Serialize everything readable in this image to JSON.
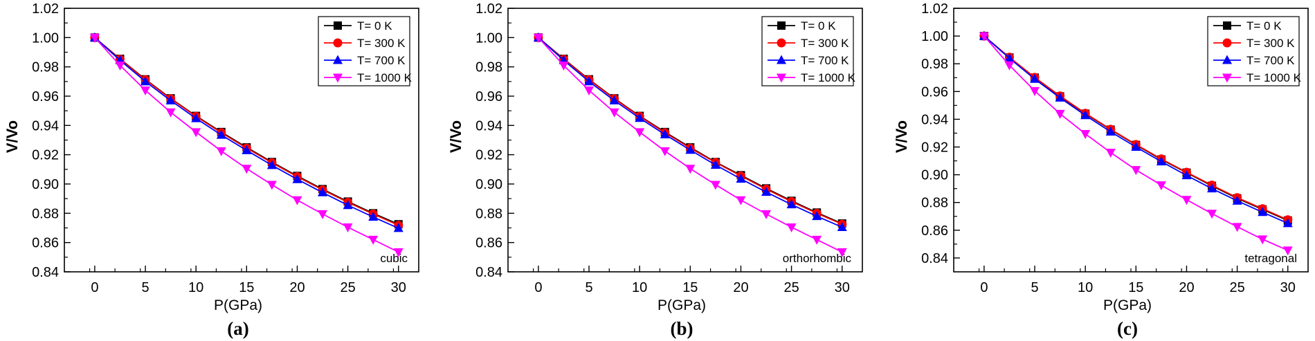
{
  "chart_data": [
    {
      "type": "line",
      "panel_label": "(a)",
      "annotation": "cubic",
      "xlabel": "P(GPa)",
      "ylabel": "V/Vo",
      "xlim": [
        -3,
        32
      ],
      "ylim": [
        0.84,
        1.02
      ],
      "x_ticks": [
        "0",
        "5",
        "10",
        "15",
        "20",
        "25",
        "30"
      ],
      "y_ticks": [
        "0.84",
        "0.86",
        "0.88",
        "0.90",
        "0.92",
        "0.94",
        "0.96",
        "0.98",
        "1.00",
        "1.02"
      ],
      "legend_position": "top-right",
      "x": [
        0,
        2.5,
        5,
        7.5,
        10,
        12.5,
        15,
        17.5,
        20,
        22.5,
        25,
        27.5,
        30
      ],
      "series": [
        {
          "name": "T= 0 K",
          "color": "#000000",
          "marker": "square",
          "values": [
            1.0,
            0.9855,
            0.9715,
            0.9585,
            0.9465,
            0.9355,
            0.925,
            0.915,
            0.9055,
            0.8965,
            0.888,
            0.88,
            0.8725
          ]
        },
        {
          "name": "T= 300 K",
          "color": "#ff0000",
          "marker": "circle",
          "values": [
            1.0,
            0.9852,
            0.9712,
            0.9582,
            0.9462,
            0.935,
            0.9245,
            0.9145,
            0.905,
            0.896,
            0.8875,
            0.8795,
            0.8718
          ]
        },
        {
          "name": "T= 700 K",
          "color": "#0000ff",
          "marker": "triangle-up",
          "values": [
            1.0,
            0.9845,
            0.97,
            0.957,
            0.9448,
            0.9335,
            0.923,
            0.9128,
            0.9032,
            0.8942,
            0.8855,
            0.8775,
            0.8698
          ]
        },
        {
          "name": "T= 1000 K",
          "color": "#ff00ff",
          "marker": "triangle-down",
          "values": [
            1.0,
            0.981,
            0.964,
            0.949,
            0.9355,
            0.9225,
            0.9105,
            0.8995,
            0.889,
            0.8795,
            0.8705,
            0.862,
            0.8535
          ]
        }
      ]
    },
    {
      "type": "line",
      "panel_label": "(b)",
      "annotation": "orthorhombic",
      "xlabel": "P(GPa)",
      "ylabel": "V/Vo",
      "xlim": [
        -3,
        32
      ],
      "ylim": [
        0.84,
        1.02
      ],
      "x_ticks": [
        "0",
        "5",
        "10",
        "15",
        "20",
        "25",
        "30"
      ],
      "y_ticks": [
        "0.84",
        "0.86",
        "0.88",
        "0.90",
        "0.92",
        "0.94",
        "0.96",
        "0.98",
        "1.00",
        "1.02"
      ],
      "legend_position": "top-right",
      "x": [
        0,
        2.5,
        5,
        7.5,
        10,
        12.5,
        15,
        17.5,
        20,
        22.5,
        25,
        27.5,
        30
      ],
      "series": [
        {
          "name": "T= 0 K",
          "color": "#000000",
          "marker": "square",
          "values": [
            1.0,
            0.9855,
            0.9715,
            0.9585,
            0.9465,
            0.9355,
            0.925,
            0.915,
            0.906,
            0.897,
            0.8885,
            0.8805,
            0.873
          ]
        },
        {
          "name": "T= 300 K",
          "color": "#ff0000",
          "marker": "circle",
          "values": [
            1.0,
            0.9852,
            0.9712,
            0.9582,
            0.9462,
            0.935,
            0.9245,
            0.9147,
            0.9055,
            0.8965,
            0.888,
            0.88,
            0.8725
          ]
        },
        {
          "name": "T= 700 K",
          "color": "#0000ff",
          "marker": "triangle-up",
          "values": [
            1.0,
            0.9845,
            0.97,
            0.957,
            0.945,
            0.9338,
            0.9232,
            0.913,
            0.9035,
            0.8945,
            0.886,
            0.878,
            0.8705
          ]
        },
        {
          "name": "T= 1000 K",
          "color": "#ff00ff",
          "marker": "triangle-down",
          "values": [
            1.0,
            0.981,
            0.964,
            0.949,
            0.9355,
            0.9225,
            0.9105,
            0.8995,
            0.889,
            0.8795,
            0.8705,
            0.862,
            0.8535
          ]
        }
      ]
    },
    {
      "type": "line",
      "panel_label": "(c)",
      "annotation": "tetragonal",
      "xlabel": "P(GPa)",
      "ylabel": "V/Vo",
      "xlim": [
        -3,
        32
      ],
      "ylim": [
        0.83,
        1.02
      ],
      "x_ticks": [
        "0",
        "5",
        "10",
        "15",
        "20",
        "25",
        "30"
      ],
      "y_ticks": [
        "0.84",
        "0.86",
        "0.88",
        "0.90",
        "0.92",
        "0.94",
        "0.96",
        "0.98",
        "1.00",
        "1.02"
      ],
      "legend_position": "top-right",
      "x": [
        0,
        2.5,
        5,
        7.5,
        10,
        12.5,
        15,
        17.5,
        20,
        22.5,
        25,
        27.5,
        30
      ],
      "series": [
        {
          "name": "T= 0 K",
          "color": "#000000",
          "marker": "square",
          "values": [
            1.0,
            0.9845,
            0.97,
            0.9565,
            0.944,
            0.9325,
            0.9215,
            0.911,
            0.9015,
            0.892,
            0.883,
            0.875,
            0.867
          ]
        },
        {
          "name": "T= 300 K",
          "color": "#ff0000",
          "marker": "circle",
          "values": [
            1.0,
            0.9847,
            0.9702,
            0.9568,
            0.9443,
            0.9328,
            0.9218,
            0.9114,
            0.9018,
            0.8925,
            0.8835,
            0.8755,
            0.8675
          ]
        },
        {
          "name": "T= 700 K",
          "color": "#0000ff",
          "marker": "triangle-up",
          "values": [
            1.0,
            0.984,
            0.969,
            0.9555,
            0.9428,
            0.931,
            0.92,
            0.9095,
            0.8995,
            0.89,
            0.8812,
            0.873,
            0.865
          ]
        },
        {
          "name": "T= 1000 K",
          "color": "#ff00ff",
          "marker": "triangle-down",
          "values": [
            1.0,
            0.979,
            0.9605,
            0.944,
            0.9295,
            0.916,
            0.9035,
            0.8925,
            0.882,
            0.872,
            0.8625,
            0.8535,
            0.8455
          ]
        }
      ]
    }
  ]
}
